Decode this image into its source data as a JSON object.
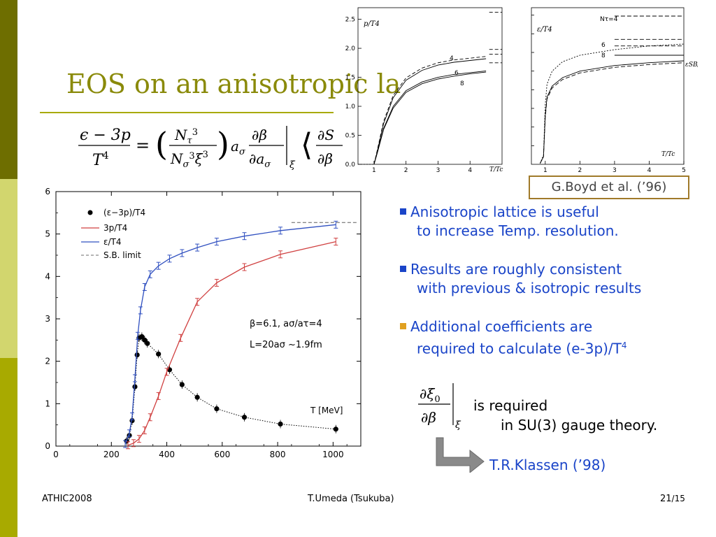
{
  "slide": {
    "title": "EOS on an anisotropic la",
    "boyd_caption": "G.Boyd et al. (’96)",
    "bullets": [
      {
        "line1": "Anisotropic lattice is useful",
        "line2": "to increase Temp. resolution.",
        "marker_color": "#1a44c8"
      },
      {
        "line1": "Results are roughly consistent",
        "line2": "with previous & isotropic results",
        "marker_color": "#1a44c8"
      },
      {
        "line1": "Additional coefficients are",
        "line2": "required to calculate (e-3p)/T",
        "line2_sup": "4",
        "marker_color": "#e0a020"
      }
    ],
    "required_line1": "is required",
    "required_line2": "in SU(3) gauge theory.",
    "klassen": "T.R.Klassen (’98)",
    "footer": {
      "left": "ATHIC2008",
      "center": "T.Umeda (Tsukuba)",
      "page": "21",
      "total": "/15"
    },
    "colors": {
      "sidebar_dark": "#6e6e00",
      "sidebar_light": "#d2d66e",
      "sidebar_mid": "#a8aa00",
      "title": "#8a8a0a",
      "bullet_text": "#1a44c8"
    }
  },
  "chart_data": [
    {
      "type": "line",
      "xlabel": "T [MeV]",
      "ylabel": "",
      "xlim": [
        0,
        1100
      ],
      "ylim": [
        0,
        6
      ],
      "xticks": [
        "0",
        "200",
        "400",
        "600",
        "800",
        "1000"
      ],
      "yticks": [
        "0",
        "1",
        "2",
        "3",
        "4",
        "5",
        "6"
      ],
      "legend_position": "top-left",
      "annotations": [
        "β=6.1, aσ/aτ=4",
        "L=20aσ ~1.9fm"
      ],
      "series": [
        {
          "name": "(ε−3p)/T4",
          "style": "dotted-with-points",
          "color": "#000000",
          "x": [
            255,
            265,
            275,
            285,
            293,
            300,
            310,
            320,
            330,
            370,
            410,
            455,
            510,
            580,
            680,
            810,
            1010
          ],
          "y": [
            0.12,
            0.25,
            0.6,
            1.4,
            2.15,
            2.55,
            2.58,
            2.5,
            2.42,
            2.17,
            1.8,
            1.45,
            1.15,
            0.88,
            0.68,
            0.52,
            0.4
          ]
        },
        {
          "name": "3p/T4",
          "style": "solid",
          "color": "#d04040",
          "x": [
            260,
            280,
            300,
            320,
            340,
            370,
            400,
            450,
            510,
            580,
            680,
            810,
            1010
          ],
          "y": [
            0.02,
            0.07,
            0.17,
            0.37,
            0.68,
            1.18,
            1.75,
            2.55,
            3.4,
            3.85,
            4.22,
            4.52,
            4.82
          ]
        },
        {
          "name": "ε/T4",
          "style": "solid",
          "color": "#3050c0",
          "x": [
            250,
            265,
            275,
            285,
            295,
            305,
            320,
            340,
            370,
            410,
            455,
            510,
            580,
            680,
            810,
            1010
          ],
          "y": [
            0.05,
            0.3,
            0.7,
            1.6,
            2.6,
            3.2,
            3.75,
            4.05,
            4.25,
            4.42,
            4.55,
            4.68,
            4.82,
            4.95,
            5.08,
            5.22
          ]
        },
        {
          "name": "S.B. limit",
          "style": "dashed",
          "color": "#888888",
          "x": [
            850,
            1090
          ],
          "y": [
            5.27,
            5.27
          ]
        }
      ]
    },
    {
      "type": "line",
      "ylabel": "p/T4",
      "xlabel": "T/Tc",
      "xlim": [
        0.5,
        5
      ],
      "ylim": [
        0,
        2.7
      ],
      "yticks": [
        "0.0",
        "0.5",
        "1.0",
        "1.5",
        "2.0",
        "2.5"
      ],
      "xticks": [
        "1",
        "2",
        "3",
        "4"
      ],
      "curve_labels": [
        "4",
        "6",
        "8"
      ],
      "series": [
        {
          "name": "4",
          "style": "solid",
          "color": "#000000",
          "x": [
            1.0,
            1.1,
            1.3,
            1.6,
            2.0,
            2.5,
            3.0,
            3.5,
            4.0,
            4.5
          ],
          "y": [
            0.0,
            0.22,
            0.7,
            1.15,
            1.45,
            1.62,
            1.71,
            1.76,
            1.79,
            1.82
          ]
        },
        {
          "name": "4-dashed",
          "style": "dashed",
          "color": "#000000",
          "x": [
            1.0,
            1.1,
            1.3,
            1.6,
            2.0,
            2.5,
            3.0,
            3.5,
            4.0,
            4.5
          ],
          "y": [
            0.0,
            0.24,
            0.74,
            1.19,
            1.49,
            1.66,
            1.75,
            1.8,
            1.83,
            1.86
          ]
        },
        {
          "name": "6",
          "style": "solid",
          "color": "#000000",
          "x": [
            1.0,
            1.1,
            1.3,
            1.6,
            2.0,
            2.5,
            3.0,
            3.5,
            4.0,
            4.5
          ],
          "y": [
            0.0,
            0.2,
            0.62,
            1.0,
            1.27,
            1.42,
            1.5,
            1.55,
            1.58,
            1.61
          ]
        },
        {
          "name": "8",
          "style": "solid",
          "color": "#000000",
          "x": [
            1.0,
            1.1,
            1.3,
            1.6,
            2.0,
            2.5,
            3.0,
            3.5,
            4.0,
            4.5
          ],
          "y": [
            0.0,
            0.19,
            0.6,
            0.97,
            1.24,
            1.39,
            1.47,
            1.52,
            1.56,
            1.59
          ]
        },
        {
          "name": "SB-1",
          "style": "dashed",
          "color": "#000000",
          "x": [
            4.6,
            5.0
          ],
          "y": [
            2.62,
            2.62
          ]
        },
        {
          "name": "SB-2",
          "style": "dashed",
          "color": "#000000",
          "x": [
            4.6,
            5.0
          ],
          "y": [
            1.98,
            1.98
          ]
        },
        {
          "name": "SB-3",
          "style": "dashed",
          "color": "#000000",
          "x": [
            4.6,
            5.0
          ],
          "y": [
            1.9,
            1.9
          ]
        },
        {
          "name": "SB-4",
          "style": "dashed",
          "color": "#000000",
          "x": [
            4.6,
            5.0
          ],
          "y": [
            1.75,
            1.75
          ]
        }
      ]
    },
    {
      "type": "line",
      "ylabel": "ε/T4",
      "xlabel": "T/Tc",
      "xlim": [
        0.6,
        5
      ],
      "ylim": [
        0,
        8.4
      ],
      "xticks": [
        "1",
        "2",
        "3",
        "4",
        "5"
      ],
      "curve_labels": [
        "Nτ=4",
        "6",
        "8"
      ],
      "side_label": "εSB/T4",
      "series": [
        {
          "name": "Nt4",
          "style": "dashed-fine",
          "color": "#000000",
          "x": [
            0.85,
            0.95,
            1.0,
            1.05,
            1.2,
            1.5,
            2.0,
            3.0,
            4.0,
            5.0
          ],
          "y": [
            0.05,
            0.5,
            3.2,
            4.3,
            5.0,
            5.5,
            5.85,
            6.15,
            6.35,
            6.45
          ]
        },
        {
          "name": "Nt6",
          "style": "solid",
          "color": "#000000",
          "x": [
            0.85,
            0.95,
            1.0,
            1.05,
            1.2,
            1.5,
            2.0,
            3.0,
            4.0,
            5.0
          ],
          "y": [
            0.05,
            0.4,
            2.6,
            3.6,
            4.2,
            4.65,
            5.0,
            5.3,
            5.45,
            5.55
          ]
        },
        {
          "name": "Nt8",
          "style": "dashed",
          "color": "#000000",
          "x": [
            0.85,
            0.95,
            1.0,
            1.05,
            1.2,
            1.5,
            2.0,
            3.0,
            4.0,
            5.0
          ],
          "y": [
            0.05,
            0.4,
            2.5,
            3.5,
            4.1,
            4.55,
            4.9,
            5.2,
            5.35,
            5.45
          ]
        },
        {
          "name": "SB-a",
          "style": "dashed",
          "color": "#000000",
          "x": [
            3.0,
            5.0
          ],
          "y": [
            7.95,
            7.95
          ]
        },
        {
          "name": "SB-b",
          "style": "dashed",
          "color": "#000000",
          "x": [
            3.0,
            5.0
          ],
          "y": [
            6.7,
            6.7
          ]
        },
        {
          "name": "SB-c",
          "style": "dashed",
          "color": "#000000",
          "x": [
            3.0,
            5.0
          ],
          "y": [
            6.35,
            6.35
          ]
        },
        {
          "name": "SB-d",
          "style": "solid",
          "color": "#000000",
          "x": [
            3.0,
            5.0
          ],
          "y": [
            5.85,
            5.85
          ]
        }
      ]
    }
  ]
}
